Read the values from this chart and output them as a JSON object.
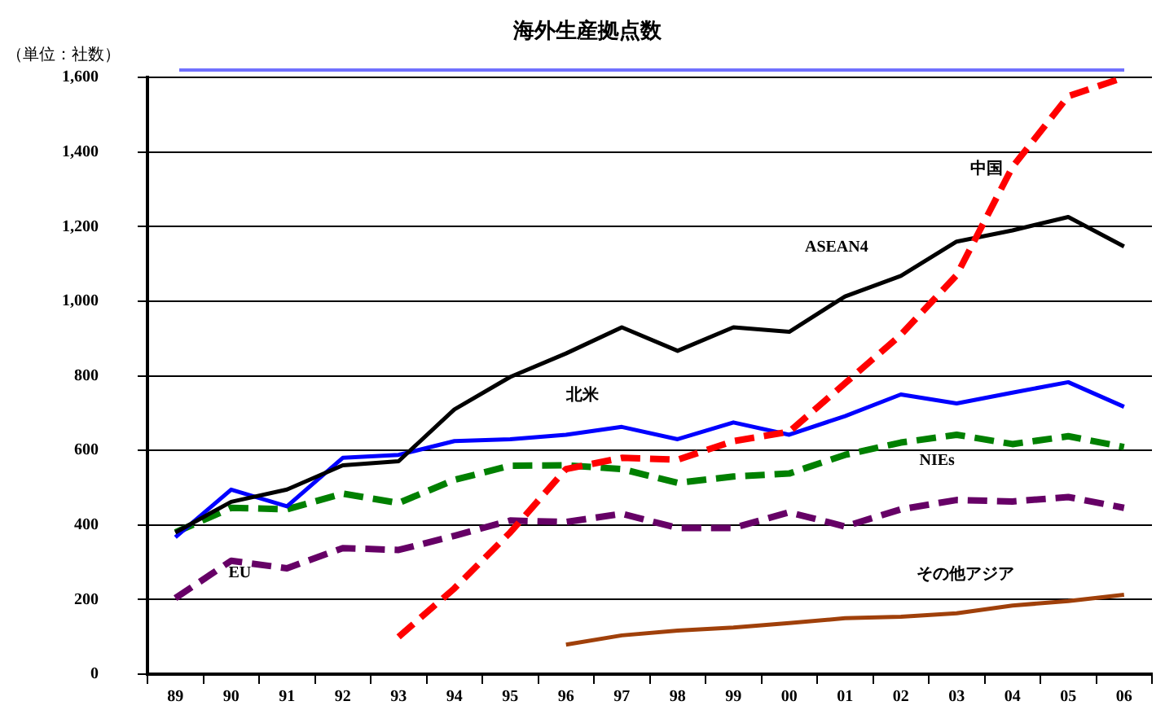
{
  "chart_data": {
    "type": "line",
    "title": "海外生産拠点数",
    "ylabel": "（単位：社数）",
    "categories": [
      "89",
      "90",
      "91",
      "92",
      "93",
      "94",
      "95",
      "96",
      "97",
      "98",
      "99",
      "00",
      "01",
      "02",
      "03",
      "04",
      "05",
      "06"
    ],
    "ylim": [
      0,
      1600
    ],
    "yticks": [
      0,
      {
        "value": 200,
        "label": "200"
      },
      {
        "value": 400,
        "label": "400"
      },
      {
        "value": 600,
        "label": "600"
      },
      {
        "value": 800,
        "label": "800"
      },
      {
        "value": 1000,
        "label": "1,000"
      },
      {
        "value": 1200,
        "label": "1,200"
      },
      {
        "value": 1400,
        "label": "1,400"
      },
      {
        "value": 1600,
        "label": "1,600"
      }
    ],
    "grid": "y",
    "legend": false,
    "marker": "none",
    "series": [
      {
        "name": "中国",
        "color": "#ff0000",
        "line_style": "dashed",
        "values": [
          null,
          null,
          null,
          null,
          100,
          230,
          380,
          550,
          580,
          575,
          625,
          650,
          780,
          910,
          1070,
          1360,
          1550,
          1600
        ]
      },
      {
        "name": "ASEAN4",
        "color": "#000000",
        "line_style": "solid",
        "values": [
          380,
          462,
          495,
          560,
          571,
          710,
          797,
          860,
          930,
          867,
          930,
          918,
          1013,
          1068,
          1160,
          1190,
          1226,
          1147
        ]
      },
      {
        "name": "北米",
        "color": "#0000ff",
        "line_style": "solid",
        "values": [
          367,
          495,
          450,
          580,
          588,
          625,
          630,
          642,
          663,
          630,
          675,
          642,
          692,
          750,
          726,
          755,
          783,
          717
        ]
      },
      {
        "name": "NIEs",
        "color": "#008000",
        "line_style": "dashed",
        "values": [
          380,
          446,
          442,
          484,
          459,
          521,
          559,
          560,
          550,
          513,
          530,
          538,
          588,
          621,
          642,
          617,
          638,
          609
        ]
      },
      {
        "name": "EU",
        "color": "#660066",
        "line_style": "dashed",
        "values": [
          204,
          304,
          284,
          338,
          333,
          371,
          412,
          408,
          430,
          392,
          392,
          434,
          396,
          442,
          467,
          463,
          475,
          446
        ]
      },
      {
        "name": "その他アジア",
        "color": "#a0400a",
        "line_style": "solid",
        "values": [
          null,
          null,
          null,
          null,
          null,
          null,
          null,
          79,
          104,
          117,
          125,
          137,
          150,
          154,
          163,
          184,
          196,
          213
        ]
      }
    ]
  }
}
